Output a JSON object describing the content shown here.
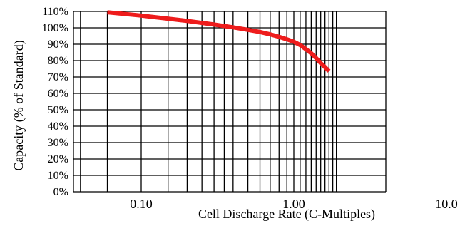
{
  "chart_data": {
    "type": "line",
    "title": "",
    "xlabel": "Cell Discharge Rate (C-Multiples)",
    "ylabel": "Capacity (% of Standard)",
    "x_scale": "log",
    "xlim": [
      0.04,
      1.9
    ],
    "ylim": [
      0,
      110
    ],
    "grid": true,
    "legend": "none",
    "x_ticks": [
      {
        "value": 0.1,
        "label": "0.10"
      },
      {
        "value": 1.0,
        "label": "1.00"
      },
      {
        "value": 10.0,
        "label": "10.0"
      }
    ],
    "x_grid_values": [
      0.04,
      0.06,
      0.1,
      0.15,
      0.2,
      0.25,
      0.3,
      0.35,
      0.4,
      0.5,
      0.6,
      0.7,
      0.8,
      0.9,
      1.0,
      1.1,
      1.2,
      1.3,
      1.4,
      1.5,
      1.6,
      1.7,
      1.8,
      1.9
    ],
    "y_ticks": [
      {
        "value": 0,
        "label": "0%"
      },
      {
        "value": 10,
        "label": "10%"
      },
      {
        "value": 20,
        "label": "20%"
      },
      {
        "value": 30,
        "label": "30%"
      },
      {
        "value": 40,
        "label": "40%"
      },
      {
        "value": 50,
        "label": "50%"
      },
      {
        "value": 60,
        "label": "60%"
      },
      {
        "value": 70,
        "label": "70%"
      },
      {
        "value": 80,
        "label": "80%"
      },
      {
        "value": 90,
        "label": "90%"
      },
      {
        "value": 100,
        "label": "100%"
      },
      {
        "value": 110,
        "label": "110%"
      }
    ],
    "series": [
      {
        "color": "#ee1c1c",
        "points": [
          {
            "x": 0.06,
            "y": 109.5
          },
          {
            "x": 0.1,
            "y": 107.5
          },
          {
            "x": 0.2,
            "y": 104.2
          },
          {
            "x": 0.3,
            "y": 102.0
          },
          {
            "x": 0.4,
            "y": 100.3
          },
          {
            "x": 0.5,
            "y": 98.8
          },
          {
            "x": 0.6,
            "y": 97.5
          },
          {
            "x": 0.7,
            "y": 96.0
          },
          {
            "x": 0.8,
            "y": 94.5
          },
          {
            "x": 0.9,
            "y": 93.0
          },
          {
            "x": 1.0,
            "y": 91.5
          },
          {
            "x": 1.1,
            "y": 89.5
          },
          {
            "x": 1.2,
            "y": 87.0
          },
          {
            "x": 1.3,
            "y": 84.5
          },
          {
            "x": 1.4,
            "y": 81.5
          },
          {
            "x": 1.5,
            "y": 78.5
          },
          {
            "x": 1.6,
            "y": 76.0
          },
          {
            "x": 1.7,
            "y": 73.5
          }
        ]
      }
    ]
  }
}
